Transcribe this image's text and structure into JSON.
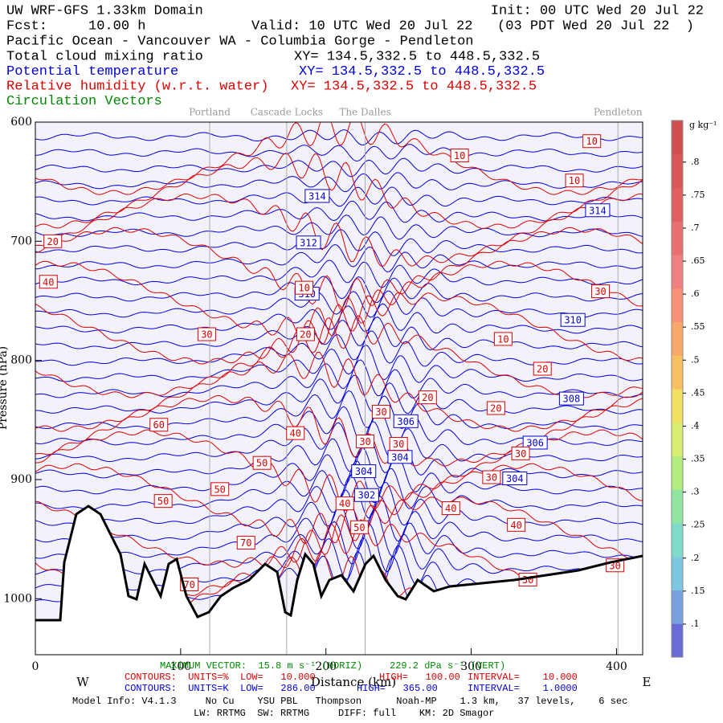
{
  "header": {
    "model": "UW WRF-GFS 1.33km Domain",
    "init": "Init: 00 UTC Wed 20 Jul 22",
    "fcst": "Fcst:     10.00 h",
    "valid": "Valid: 10 UTC Wed 20 Jul 22   (03 PDT Wed 20 Jul 22  )",
    "region": "Pacific Ocean - Vancouver WA - Columbia Gorge - Pendleton",
    "fields": [
      {
        "name": "Total cloud mixing ratio",
        "xy": "XY= 134.5,332.5 to 448.5,332.5",
        "color": "#000000"
      },
      {
        "name": "Potential temperature",
        "xy": "XY= 134.5,332.5 to 448.5,332.5",
        "color": "#0000dd"
      },
      {
        "name": "Relative humidity (w.r.t. water)",
        "xy": "XY= 134.5,332.5 to 448.5,332.5",
        "color": "#dd0000"
      },
      {
        "name": "Circulation Vectors",
        "color": "#008800"
      }
    ]
  },
  "chart_data": {
    "type": "contour",
    "xlabel": "Distance (km)",
    "ylabel": "Pressure (hPa)",
    "west": "W",
    "east": "E",
    "xlim": [
      0,
      418
    ],
    "xticks": [
      0,
      100,
      200,
      300,
      400
    ],
    "ylim": [
      1047,
      600
    ],
    "yticks": [
      600,
      700,
      800,
      900,
      1000
    ],
    "locations": [
      {
        "name": "Portland",
        "x": 120
      },
      {
        "name": "Cascade Locks",
        "x": 173
      },
      {
        "name": "The Dalles",
        "x": 227
      },
      {
        "name": "Pendleton",
        "x": 401
      }
    ],
    "theta_color": "#0000dd",
    "rh_color": "#dd0000",
    "theta_labels": [
      {
        "value": 314,
        "x": 194,
        "p": 662
      },
      {
        "value": 312,
        "x": 188,
        "p": 701
      },
      {
        "value": 310,
        "x": 187,
        "p": 744
      },
      {
        "value": 310,
        "x": 370,
        "p": 766
      },
      {
        "value": 308,
        "x": 369,
        "p": 832
      },
      {
        "value": 306,
        "x": 255,
        "p": 851
      },
      {
        "value": 306,
        "x": 344,
        "p": 869
      },
      {
        "value": 304,
        "x": 251,
        "p": 881
      },
      {
        "value": 304,
        "x": 226,
        "p": 893
      },
      {
        "value": 304,
        "x": 330,
        "p": 899
      },
      {
        "value": 302,
        "x": 228,
        "p": 913
      },
      {
        "value": 314,
        "x": 387,
        "p": 674
      }
    ],
    "rh_labels": [
      {
        "value": 10,
        "x": 292,
        "p": 628
      },
      {
        "value": 10,
        "x": 383,
        "p": 616
      },
      {
        "value": 10,
        "x": 371,
        "p": 649
      },
      {
        "value": 20,
        "x": 12,
        "p": 700
      },
      {
        "value": 40,
        "x": 9,
        "p": 734
      },
      {
        "value": 30,
        "x": 118,
        "p": 778
      },
      {
        "value": 20,
        "x": 186,
        "p": 778
      },
      {
        "value": 10,
        "x": 185,
        "p": 739
      },
      {
        "value": 10,
        "x": 322,
        "p": 782
      },
      {
        "value": 30,
        "x": 389,
        "p": 742
      },
      {
        "value": 20,
        "x": 349,
        "p": 807
      },
      {
        "value": 20,
        "x": 270,
        "p": 831
      },
      {
        "value": 20,
        "x": 317,
        "p": 840
      },
      {
        "value": 30,
        "x": 238,
        "p": 843
      },
      {
        "value": 60,
        "x": 85,
        "p": 854
      },
      {
        "value": 40,
        "x": 179,
        "p": 861
      },
      {
        "value": 30,
        "x": 227,
        "p": 868
      },
      {
        "value": 30,
        "x": 250,
        "p": 870
      },
      {
        "value": 30,
        "x": 334,
        "p": 878
      },
      {
        "value": 50,
        "x": 156,
        "p": 886
      },
      {
        "value": 30,
        "x": 314,
        "p": 898
      },
      {
        "value": 50,
        "x": 127,
        "p": 908
      },
      {
        "value": 50,
        "x": 88,
        "p": 918
      },
      {
        "value": 40,
        "x": 213,
        "p": 920
      },
      {
        "value": 40,
        "x": 286,
        "p": 924
      },
      {
        "value": 40,
        "x": 331,
        "p": 938
      },
      {
        "value": 50,
        "x": 223,
        "p": 940
      },
      {
        "value": 70,
        "x": 145,
        "p": 953
      },
      {
        "value": 70,
        "x": 106,
        "p": 988
      },
      {
        "value": 30,
        "x": 339,
        "p": 984
      },
      {
        "value": 30,
        "x": 399,
        "p": 972
      }
    ],
    "colorbar": {
      "label": "g kg⁻¹",
      "lim": [
        0.05,
        0.863
      ],
      "ticks": [
        {
          "value": 0.1,
          "label": ".1"
        },
        {
          "value": 0.15,
          "label": ".15"
        },
        {
          "value": 0.2,
          "label": ".2"
        },
        {
          "value": 0.25,
          "label": ".25"
        },
        {
          "value": 0.3,
          "label": ".3"
        },
        {
          "value": 0.35,
          "label": ".35"
        },
        {
          "value": 0.4,
          "label": ".4"
        },
        {
          "value": 0.45,
          "label": ".45"
        },
        {
          "value": 0.5,
          "label": ".5"
        },
        {
          "value": 0.55,
          "label": ".55"
        },
        {
          "value": 0.6,
          "label": ".6"
        },
        {
          "value": 0.65,
          "label": ".65"
        },
        {
          "value": 0.7,
          "label": ".7"
        },
        {
          "value": 0.75,
          "label": ".75"
        },
        {
          "value": 0.8,
          "label": ".8"
        }
      ],
      "colors": [
        "#6a6ad8",
        "#7aa0e0",
        "#7cc8e0",
        "#80dcc8",
        "#90e6a0",
        "#b0ec80",
        "#d8ee70",
        "#f2e060",
        "#f8c060",
        "#f8a868",
        "#f89078",
        "#f08080",
        "#e87070",
        "#e06060",
        "#d85858",
        "#d05050"
      ]
    }
  },
  "footer": {
    "max_vector": "MAXIMUM VECTOR:  15.8 m s⁻¹ (HORIZ)",
    "vert": "229.2 dPa s⁻¹ (VERT)",
    "rh_contours": "CONTOURS:  UNITS=%  LOW=   10.000",
    "rh_high": "HIGH=   100.00",
    "rh_interval": "INTERVAL=    10.000",
    "th_contours": "CONTOURS:  UNITS=K  LOW=   286.00",
    "th_high": "HIGH=   365.00",
    "th_interval": "INTERVAL=    1.0000",
    "model_info": "Model Info: V4.1.3     No Cu    YSU PBL   Thompson      Noah-MP    1.3 km,   37 levels,    6 sec",
    "physics": "LW: RRTMG  SW: RRTMG     DIFF: full    KM: 2D Smagor"
  }
}
